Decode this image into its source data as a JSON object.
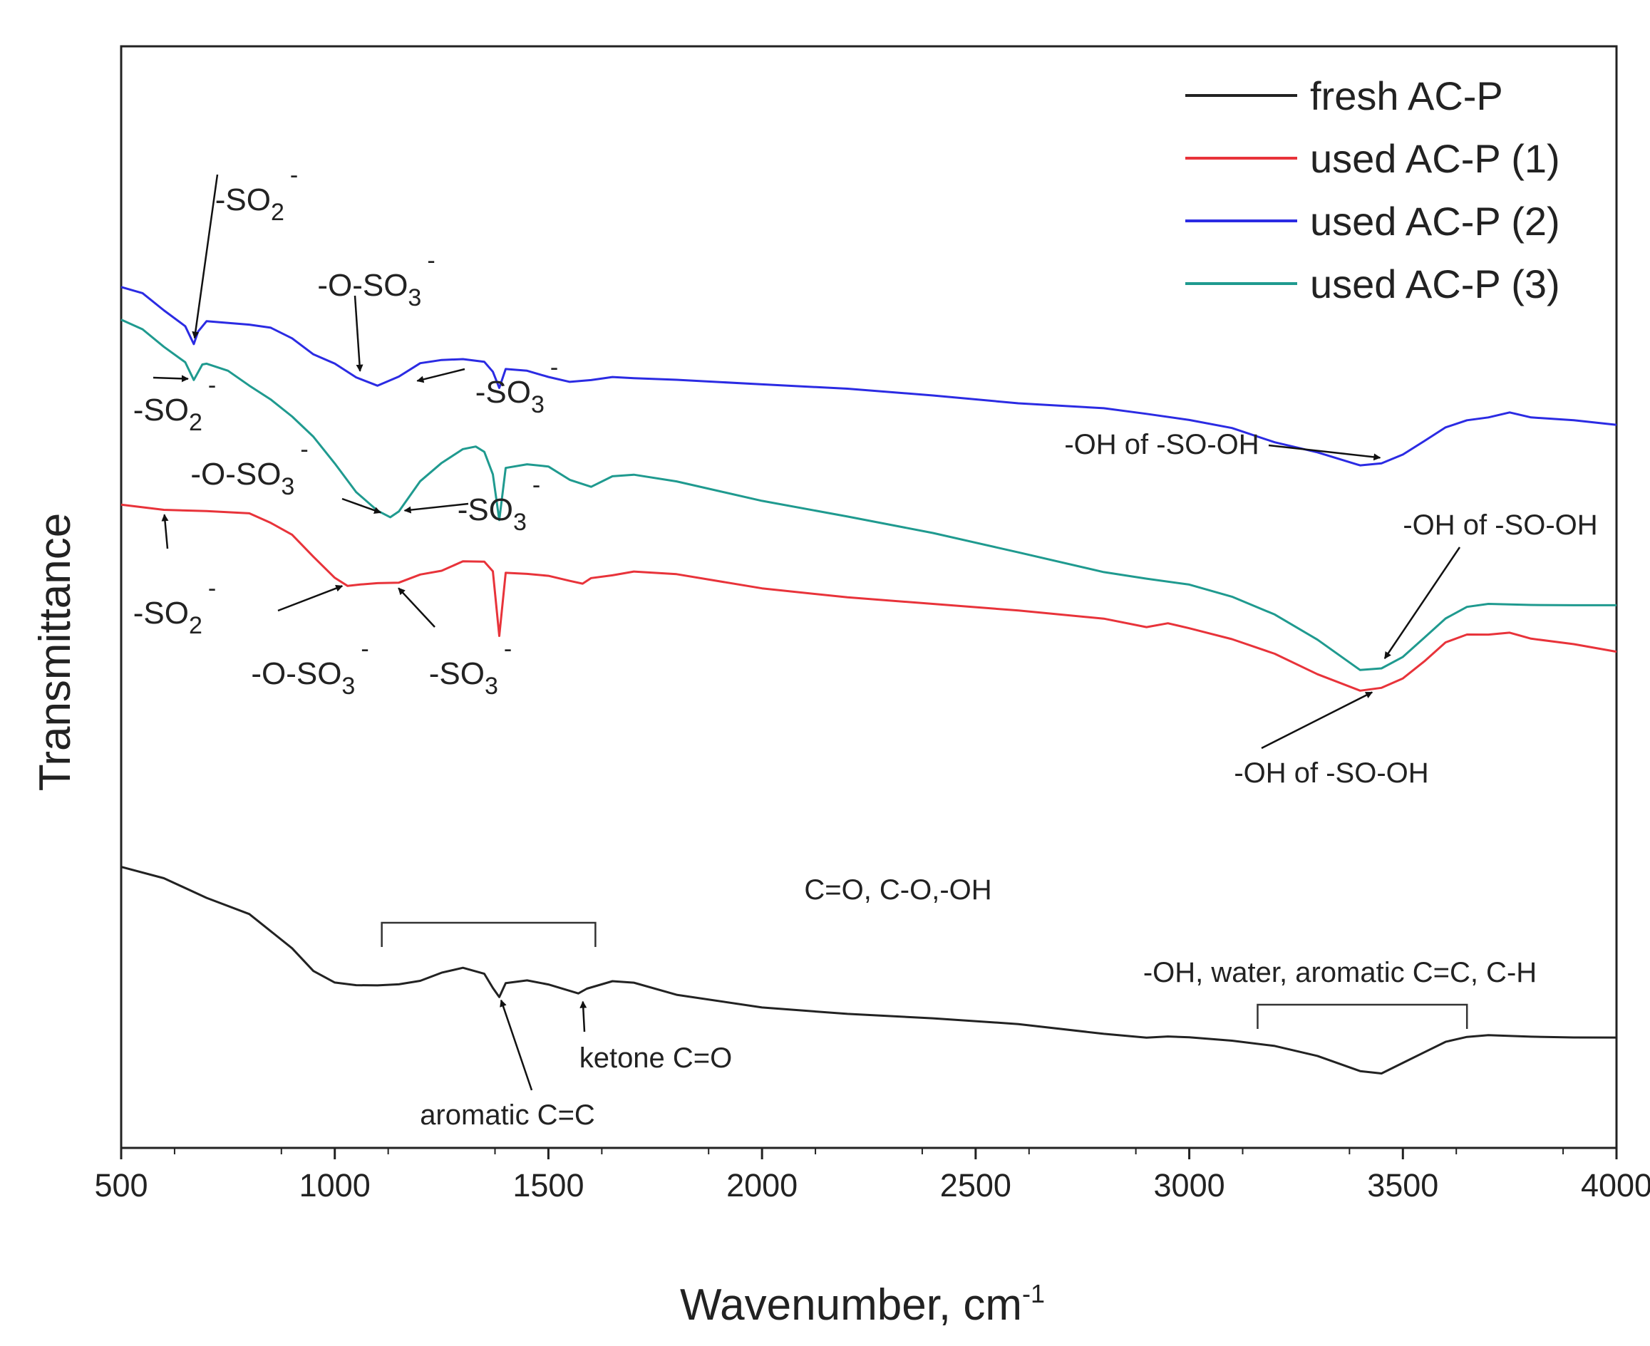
{
  "chart_data": {
    "type": "line",
    "title": "",
    "xlabel": "Wavenumber, cm",
    "xlabel_sup": "-1",
    "ylabel": "Transmittance",
    "xlim": [
      500,
      4000
    ],
    "ylim": [
      0,
      100
    ],
    "x_ticks": [
      "500",
      "1000",
      "1500",
      "2000",
      "2500",
      "3000",
      "3500",
      "4000"
    ],
    "y_tick_labels": "none",
    "grid": false,
    "legend_position": "top-right",
    "series": [
      {
        "name": "fresh AC-P",
        "color": "#222222",
        "points": [
          [
            500,
            25.5
          ],
          [
            600,
            24.4
          ],
          [
            700,
            22.6
          ],
          [
            800,
            21.2
          ],
          [
            900,
            18.2
          ],
          [
            950,
            16.2
          ],
          [
            1000,
            15.2
          ],
          [
            1050,
            15.0
          ],
          [
            1100,
            15.0
          ],
          [
            1150,
            15.1
          ],
          [
            1200,
            15.4
          ],
          [
            1250,
            16.1
          ],
          [
            1300,
            16.5
          ],
          [
            1350,
            15.9
          ],
          [
            1370,
            14.6
          ],
          [
            1385,
            13.7
          ],
          [
            1400,
            15.0
          ],
          [
            1450,
            15.2
          ],
          [
            1500,
            14.8
          ],
          [
            1550,
            14.2
          ],
          [
            1570,
            13.9
          ],
          [
            1590,
            14.6
          ],
          [
            1650,
            15.1
          ],
          [
            1700,
            15.0
          ],
          [
            1800,
            14.0
          ],
          [
            2000,
            13.0
          ],
          [
            2200,
            12.3
          ],
          [
            2400,
            11.7
          ],
          [
            2600,
            11.2
          ],
          [
            2800,
            10.5
          ],
          [
            2900,
            10.2
          ],
          [
            2950,
            10.3
          ],
          [
            3000,
            10.2
          ],
          [
            3100,
            9.8
          ],
          [
            3200,
            9.2
          ],
          [
            3300,
            8.2
          ],
          [
            3400,
            6.8
          ],
          [
            3450,
            6.6
          ],
          [
            3500,
            7.6
          ],
          [
            3550,
            8.6
          ],
          [
            3600,
            9.6
          ],
          [
            3650,
            10.1
          ],
          [
            3700,
            10.3
          ],
          [
            3800,
            10.2
          ],
          [
            3900,
            10.1
          ],
          [
            4000,
            10.0
          ]
        ]
      },
      {
        "name": "used AC-P (1)",
        "color": "#e8333a",
        "points": [
          [
            500,
            58.5
          ],
          [
            600,
            58.0
          ],
          [
            700,
            57.8
          ],
          [
            800,
            57.5
          ],
          [
            850,
            56.6
          ],
          [
            900,
            55.5
          ],
          [
            950,
            53.5
          ],
          [
            1000,
            51.6
          ],
          [
            1030,
            51.0
          ],
          [
            1060,
            51.4
          ],
          [
            1100,
            51.2
          ],
          [
            1150,
            51.3
          ],
          [
            1200,
            52.1
          ],
          [
            1250,
            52.5
          ],
          [
            1300,
            53.4
          ],
          [
            1350,
            53.4
          ],
          [
            1370,
            52.4
          ],
          [
            1385,
            46.5
          ],
          [
            1400,
            52.4
          ],
          [
            1450,
            52.3
          ],
          [
            1500,
            52.1
          ],
          [
            1550,
            51.6
          ],
          [
            1580,
            51.0
          ],
          [
            1600,
            51.8
          ],
          [
            1650,
            52.0
          ],
          [
            1700,
            52.3
          ],
          [
            1800,
            52.0
          ],
          [
            2000,
            50.8
          ],
          [
            2200,
            50.2
          ],
          [
            2400,
            49.6
          ],
          [
            2600,
            48.8
          ],
          [
            2800,
            48.0
          ],
          [
            2900,
            47.3
          ],
          [
            2950,
            47.7
          ],
          [
            3000,
            47.3
          ],
          [
            3100,
            46.4
          ],
          [
            3200,
            45.1
          ],
          [
            3300,
            43.2
          ],
          [
            3400,
            41.6
          ],
          [
            3450,
            41.8
          ],
          [
            3500,
            42.6
          ],
          [
            3550,
            44.1
          ],
          [
            3600,
            45.8
          ],
          [
            3650,
            46.5
          ],
          [
            3700,
            46.5
          ],
          [
            3750,
            46.7
          ],
          [
            3800,
            46.2
          ],
          [
            3900,
            45.8
          ],
          [
            4000,
            45.2
          ]
        ]
      },
      {
        "name": "used AC-P (2)",
        "color": "#2b2be3",
        "points": [
          [
            500,
            78.0
          ],
          [
            550,
            77.5
          ],
          [
            600,
            76.0
          ],
          [
            650,
            74.6
          ],
          [
            670,
            73.0
          ],
          [
            680,
            74.3
          ],
          [
            700,
            75.1
          ],
          [
            800,
            74.8
          ],
          [
            850,
            74.5
          ],
          [
            900,
            73.5
          ],
          [
            950,
            72.0
          ],
          [
            1000,
            71.1
          ],
          [
            1050,
            69.8
          ],
          [
            1100,
            69.0
          ],
          [
            1150,
            69.8
          ],
          [
            1200,
            71.0
          ],
          [
            1250,
            71.3
          ],
          [
            1300,
            71.4
          ],
          [
            1350,
            71.2
          ],
          [
            1370,
            70.4
          ],
          [
            1385,
            68.8
          ],
          [
            1400,
            70.6
          ],
          [
            1450,
            70.5
          ],
          [
            1500,
            70.0
          ],
          [
            1550,
            69.6
          ],
          [
            1600,
            69.8
          ],
          [
            1650,
            70.1
          ],
          [
            1700,
            70.0
          ],
          [
            1800,
            69.8
          ],
          [
            2000,
            69.2
          ],
          [
            2200,
            68.8
          ],
          [
            2400,
            68.4
          ],
          [
            2600,
            67.8
          ],
          [
            2800,
            67.2
          ],
          [
            2900,
            66.6
          ],
          [
            3000,
            66.0
          ],
          [
            3100,
            65.3
          ],
          [
            3200,
            64.1
          ],
          [
            3300,
            63.3
          ],
          [
            3400,
            62.2
          ],
          [
            3450,
            62.4
          ],
          [
            3500,
            63.2
          ],
          [
            3550,
            64.4
          ],
          [
            3600,
            65.6
          ],
          [
            3650,
            66.2
          ],
          [
            3700,
            66.4
          ],
          [
            3750,
            66.8
          ],
          [
            3800,
            66.3
          ],
          [
            3900,
            66.0
          ],
          [
            4000,
            65.6
          ]
        ]
      },
      {
        "name": "used AC-P (3)",
        "color": "#1f9a8f",
        "points": [
          [
            500,
            75.0
          ],
          [
            550,
            74.1
          ],
          [
            600,
            72.5
          ],
          [
            650,
            71.1
          ],
          [
            670,
            69.6
          ],
          [
            690,
            71.2
          ],
          [
            700,
            71.0
          ],
          [
            750,
            70.4
          ],
          [
            800,
            69.1
          ],
          [
            850,
            67.9
          ],
          [
            900,
            66.4
          ],
          [
            950,
            64.6
          ],
          [
            1000,
            62.2
          ],
          [
            1050,
            59.6
          ],
          [
            1100,
            57.9
          ],
          [
            1130,
            57.3
          ],
          [
            1150,
            57.8
          ],
          [
            1200,
            60.5
          ],
          [
            1250,
            62.1
          ],
          [
            1300,
            63.3
          ],
          [
            1330,
            63.6
          ],
          [
            1350,
            63.0
          ],
          [
            1370,
            61.3
          ],
          [
            1385,
            57.0
          ],
          [
            1400,
            61.5
          ],
          [
            1450,
            61.8
          ],
          [
            1500,
            61.6
          ],
          [
            1550,
            60.4
          ],
          [
            1600,
            59.8
          ],
          [
            1650,
            60.8
          ],
          [
            1700,
            61.0
          ],
          [
            1800,
            60.5
          ],
          [
            2000,
            58.8
          ],
          [
            2200,
            57.2
          ],
          [
            2400,
            55.6
          ],
          [
            2600,
            54.0
          ],
          [
            2800,
            52.4
          ],
          [
            2900,
            51.8
          ],
          [
            3000,
            51.2
          ],
          [
            3100,
            50.0
          ],
          [
            3200,
            48.3
          ],
          [
            3300,
            46.0
          ],
          [
            3400,
            43.3
          ],
          [
            3450,
            43.5
          ],
          [
            3500,
            44.6
          ],
          [
            3550,
            46.4
          ],
          [
            3600,
            48.2
          ],
          [
            3650,
            49.3
          ],
          [
            3700,
            49.6
          ],
          [
            3800,
            49.5
          ],
          [
            3900,
            49.4
          ],
          [
            4000,
            49.3
          ]
        ]
      }
    ],
    "legend": [
      {
        "label": "fresh AC-P",
        "color": "#222222"
      },
      {
        "label": "used AC-P (1)",
        "color": "#e8333a"
      },
      {
        "label": "used AC-P (2)",
        "color": "#2b2be3"
      },
      {
        "label": "used AC-P (3)",
        "color": "#1f9a8f"
      }
    ],
    "annotations": [
      {
        "id": "b-so2",
        "base": "-SO",
        "sub": "2",
        "sup": "-",
        "x": 670,
        "y": 73.0
      },
      {
        "id": "b-oso3",
        "base": "-O-SO",
        "sub": "3",
        "sup": "-",
        "x": 1060,
        "y": 70.0
      },
      {
        "id": "b-so3",
        "base": "-SO",
        "sub": "3",
        "sup": "-",
        "x": 1180,
        "y": 69.5
      },
      {
        "id": "b-oh",
        "base": "-OH of -SO-OH",
        "x": 3460,
        "y": 62.6
      },
      {
        "id": "t-so2",
        "base": "-SO",
        "sub": "2",
        "sup": "-",
        "x": 670,
        "y": 69.8
      },
      {
        "id": "t-oso3",
        "base": "-O-SO",
        "sub": "3",
        "sup": "-",
        "x": 1120,
        "y": 57.5
      },
      {
        "id": "t-so3",
        "base": "-SO",
        "sub": "3",
        "sup": "-",
        "x": 1150,
        "y": 57.8
      },
      {
        "id": "t-oh",
        "base": "-OH of -SO-OH",
        "x": 3450,
        "y": 44.0
      },
      {
        "id": "r-so2",
        "base": "-SO",
        "sub": "2",
        "sup": "-",
        "x": 600,
        "y": 58.0
      },
      {
        "id": "r-oso3",
        "base": "-O-SO",
        "sub": "3",
        "sup": "-",
        "x": 1030,
        "y": 51.2
      },
      {
        "id": "r-so3",
        "base": "-SO",
        "sub": "3",
        "sup": "-",
        "x": 1140,
        "y": 51.2
      },
      {
        "id": "r-oh",
        "base": "-OH of -SO-OH",
        "x": 3440,
        "y": 41.6
      },
      {
        "id": "k-ketone",
        "base": "ketone C=O",
        "x": 1580,
        "y": 13.8
      },
      {
        "id": "k-aromatic",
        "base": "aromatic C=C",
        "x": 1385,
        "y": 13.9
      }
    ],
    "brackets": [
      {
        "id": "br-co",
        "label": "C=O, C-O,-OH",
        "x_from": 1110,
        "x_to": 1610
      },
      {
        "id": "br-oh",
        "label": "-OH, water, aromatic C=C, C-H",
        "x_from": 3160,
        "x_to": 3650
      }
    ]
  }
}
